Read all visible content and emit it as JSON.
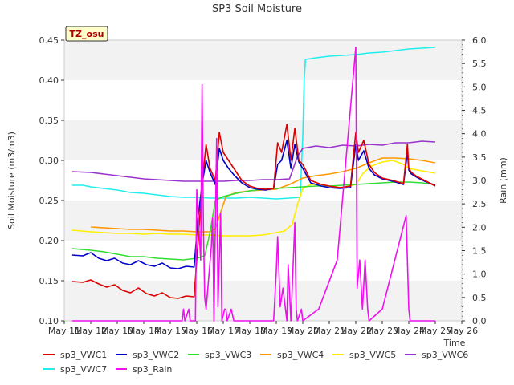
{
  "chart_data": {
    "type": "line",
    "title": "SP3 Soil Moisture",
    "badge": "TZ_osu",
    "xlabel": "Time",
    "ylabel": "Soil Moisture (m3/m3)",
    "y2label": "Rain (mm)",
    "ylim": [
      0.1,
      0.45
    ],
    "y2lim": [
      0.0,
      6.0
    ],
    "xlim": [
      11,
      26
    ],
    "xticks": [
      "May 11",
      "May 12",
      "May 13",
      "May 14",
      "May 15",
      "May 16",
      "May 17",
      "May 18",
      "May 19",
      "May 20",
      "May 21",
      "May 22",
      "May 23",
      "May 24",
      "May 25",
      "May 26"
    ],
    "yticks": [
      "0.10",
      "0.15",
      "0.20",
      "0.25",
      "0.30",
      "0.35",
      "0.40",
      "0.45"
    ],
    "y2ticks": [
      "0.0",
      "0.5",
      "1.0",
      "1.5",
      "2.0",
      "2.5",
      "3.0",
      "3.5",
      "4.0",
      "4.5",
      "5.0",
      "5.5",
      "6.0"
    ],
    "grid": "horizontal bands",
    "legend_position": "bottom",
    "series": [
      {
        "name": "sp3_VWC1",
        "color": "#dd0000",
        "axis": "left",
        "x": [
          11.3,
          11.7,
          12.0,
          12.3,
          12.6,
          12.9,
          13.2,
          13.5,
          13.8,
          14.1,
          14.4,
          14.7,
          15.0,
          15.3,
          15.6,
          15.9,
          16.05,
          16.2,
          16.35,
          16.5,
          16.7,
          16.85,
          17.0,
          17.2,
          17.4,
          17.7,
          18.0,
          18.3,
          18.6,
          18.9,
          19.05,
          19.2,
          19.4,
          19.55,
          19.7,
          19.85,
          20.0,
          20.3,
          20.7,
          21.0,
          21.4,
          21.8,
          22.0,
          22.1,
          22.3,
          22.5,
          22.7,
          23.0,
          23.4,
          23.8,
          23.95,
          24.0,
          24.1,
          24.3,
          24.6,
          25.0
        ],
        "y": [
          0.149,
          0.148,
          0.151,
          0.146,
          0.142,
          0.145,
          0.138,
          0.135,
          0.141,
          0.134,
          0.131,
          0.135,
          0.129,
          0.128,
          0.131,
          0.13,
          0.2,
          0.27,
          0.32,
          0.29,
          0.275,
          0.335,
          0.31,
          0.3,
          0.29,
          0.275,
          0.268,
          0.265,
          0.264,
          0.265,
          0.322,
          0.31,
          0.345,
          0.3,
          0.34,
          0.3,
          0.295,
          0.275,
          0.27,
          0.268,
          0.266,
          0.268,
          0.335,
          0.31,
          0.325,
          0.295,
          0.285,
          0.278,
          0.275,
          0.271,
          0.32,
          0.29,
          0.285,
          0.28,
          0.275,
          0.268
        ]
      },
      {
        "name": "sp3_VWC2",
        "color": "#0000cc",
        "axis": "left",
        "x": [
          11.3,
          11.7,
          12.0,
          12.3,
          12.6,
          12.9,
          13.2,
          13.5,
          13.8,
          14.1,
          14.4,
          14.7,
          15.0,
          15.3,
          15.6,
          15.9,
          16.05,
          16.2,
          16.35,
          16.5,
          16.7,
          16.85,
          17.0,
          17.2,
          17.4,
          17.7,
          18.0,
          18.3,
          18.6,
          18.9,
          19.05,
          19.2,
          19.4,
          19.55,
          19.7,
          19.85,
          20.0,
          20.3,
          20.7,
          21.0,
          21.4,
          21.8,
          22.0,
          22.1,
          22.3,
          22.5,
          22.7,
          23.0,
          23.4,
          23.8,
          23.95,
          24.0,
          24.1,
          24.3,
          24.6,
          25.0
        ],
        "y": [
          0.182,
          0.181,
          0.185,
          0.178,
          0.175,
          0.178,
          0.172,
          0.17,
          0.175,
          0.17,
          0.168,
          0.172,
          0.166,
          0.165,
          0.168,
          0.167,
          0.23,
          0.27,
          0.3,
          0.285,
          0.27,
          0.315,
          0.3,
          0.29,
          0.282,
          0.272,
          0.266,
          0.264,
          0.263,
          0.265,
          0.295,
          0.3,
          0.325,
          0.29,
          0.32,
          0.298,
          0.29,
          0.272,
          0.268,
          0.266,
          0.265,
          0.266,
          0.32,
          0.3,
          0.312,
          0.29,
          0.282,
          0.277,
          0.274,
          0.27,
          0.31,
          0.288,
          0.283,
          0.279,
          0.274,
          0.269
        ]
      },
      {
        "name": "sp3_VWC3",
        "color": "#33dd33",
        "axis": "left",
        "x": [
          11.3,
          12.0,
          12.5,
          13.0,
          13.5,
          14.0,
          14.5,
          15.0,
          15.5,
          16.0,
          16.3,
          16.5,
          16.7,
          17.0,
          17.5,
          18.0,
          18.5,
          19.0,
          19.5,
          20.0,
          20.5,
          21.0,
          21.5,
          22.0,
          22.5,
          23.0,
          23.5,
          24.0,
          24.5,
          25.0
        ],
        "y": [
          0.19,
          0.188,
          0.186,
          0.183,
          0.18,
          0.18,
          0.178,
          0.177,
          0.176,
          0.178,
          0.181,
          0.21,
          0.25,
          0.255,
          0.259,
          0.262,
          0.264,
          0.265,
          0.266,
          0.267,
          0.268,
          0.268,
          0.269,
          0.27,
          0.271,
          0.272,
          0.273,
          0.273,
          0.272,
          0.27
        ]
      },
      {
        "name": "sp3_VWC4",
        "color": "#ff9900",
        "axis": "left",
        "x": [
          12.0,
          12.5,
          13.0,
          13.5,
          14.0,
          14.5,
          15.0,
          15.5,
          16.0,
          16.5,
          16.7,
          16.9,
          17.1,
          17.5,
          18.0,
          18.5,
          19.0,
          19.5,
          20.0,
          20.5,
          21.0,
          21.5,
          22.0,
          22.5,
          23.0,
          23.5,
          24.0,
          24.5,
          25.0
        ],
        "y": [
          0.217,
          0.216,
          0.215,
          0.214,
          0.214,
          0.213,
          0.212,
          0.212,
          0.211,
          0.211,
          0.215,
          0.235,
          0.255,
          0.26,
          0.262,
          0.263,
          0.264,
          0.27,
          0.278,
          0.281,
          0.283,
          0.286,
          0.29,
          0.297,
          0.303,
          0.303,
          0.302,
          0.3,
          0.297
        ]
      },
      {
        "name": "sp3_VWC5",
        "color": "#ffee00",
        "axis": "left",
        "x": [
          11.3,
          12.0,
          12.5,
          13.0,
          13.5,
          14.0,
          14.5,
          15.0,
          15.5,
          16.0,
          16.5,
          17.0,
          17.5,
          18.0,
          18.5,
          19.0,
          19.3,
          19.6,
          19.8,
          20.0,
          20.3,
          20.7,
          21.0,
          21.5,
          22.0,
          22.3,
          22.6,
          23.0,
          23.4,
          23.8,
          24.0,
          24.5,
          25.0
        ],
        "y": [
          0.213,
          0.211,
          0.21,
          0.209,
          0.209,
          0.208,
          0.209,
          0.208,
          0.208,
          0.207,
          0.207,
          0.206,
          0.206,
          0.206,
          0.207,
          0.21,
          0.212,
          0.22,
          0.245,
          0.265,
          0.27,
          0.27,
          0.268,
          0.266,
          0.27,
          0.285,
          0.293,
          0.298,
          0.3,
          0.295,
          0.29,
          0.287,
          0.284
        ]
      },
      {
        "name": "sp3_VWC6",
        "color": "#9933cc",
        "axis": "left",
        "x": [
          11.3,
          12.0,
          12.5,
          13.0,
          13.5,
          14.0,
          14.5,
          15.0,
          15.5,
          16.0,
          16.5,
          17.0,
          17.5,
          18.0,
          18.5,
          19.0,
          19.5,
          19.8,
          20.0,
          20.5,
          21.0,
          21.5,
          22.0,
          22.5,
          23.0,
          23.5,
          24.0,
          24.5,
          25.0
        ],
        "y": [
          0.286,
          0.285,
          0.283,
          0.281,
          0.279,
          0.277,
          0.276,
          0.275,
          0.274,
          0.274,
          0.274,
          0.274,
          0.275,
          0.275,
          0.276,
          0.276,
          0.277,
          0.305,
          0.315,
          0.318,
          0.316,
          0.319,
          0.318,
          0.32,
          0.319,
          0.322,
          0.322,
          0.324,
          0.323
        ]
      },
      {
        "name": "sp3_VWC7",
        "color": "#22eeee",
        "axis": "left",
        "x": [
          11.3,
          11.7,
          12.0,
          12.5,
          13.0,
          13.5,
          14.0,
          14.5,
          15.0,
          15.5,
          16.0,
          16.5,
          17.0,
          17.5,
          18.0,
          18.5,
          19.0,
          19.5,
          19.9,
          20.0,
          20.05,
          20.1,
          20.5,
          21.0,
          21.5,
          22.0,
          22.5,
          23.0,
          23.5,
          24.0,
          24.5,
          25.0
        ],
        "y": [
          0.269,
          0.269,
          0.267,
          0.265,
          0.263,
          0.26,
          0.259,
          0.257,
          0.255,
          0.254,
          0.254,
          0.253,
          0.253,
          0.253,
          0.254,
          0.253,
          0.252,
          0.253,
          0.254,
          0.33,
          0.4,
          0.426,
          0.428,
          0.43,
          0.431,
          0.432,
          0.434,
          0.435,
          0.437,
          0.439,
          0.44,
          0.441
        ]
      },
      {
        "name": "sp3_Rain",
        "color": "#ee11ee",
        "axis": "right",
        "x": [
          11.3,
          15.45,
          15.5,
          15.55,
          15.7,
          15.75,
          15.95,
          16.0,
          16.15,
          16.2,
          16.25,
          16.3,
          16.35,
          16.55,
          16.6,
          16.65,
          16.75,
          16.8,
          16.9,
          16.95,
          17.05,
          17.1,
          17.15,
          17.3,
          17.4,
          18.9,
          19.0,
          19.05,
          19.15,
          19.25,
          19.4,
          19.45,
          19.55,
          19.7,
          19.75,
          19.8,
          19.95,
          20.0,
          20.6,
          21.3,
          22.0,
          22.05,
          22.15,
          22.25,
          22.35,
          22.45,
          22.5,
          23.0,
          23.9,
          24.0,
          24.05,
          25.0
        ],
        "y": [
          0,
          0,
          0.25,
          0,
          0.25,
          0,
          0,
          2.8,
          1.3,
          5.05,
          2.0,
          0.5,
          0.25,
          1.6,
          2.2,
          0,
          3.9,
          0.3,
          2.3,
          0,
          0.25,
          0.25,
          0,
          0.25,
          0,
          0,
          1.05,
          1.8,
          0.3,
          0.7,
          0,
          1.2,
          0,
          2.1,
          0.25,
          0,
          0.25,
          0,
          0.25,
          1.3,
          5.85,
          0.7,
          1.3,
          0.25,
          1.3,
          0.25,
          0,
          0.25,
          2.25,
          0.25,
          0,
          0
        ]
      }
    ]
  }
}
